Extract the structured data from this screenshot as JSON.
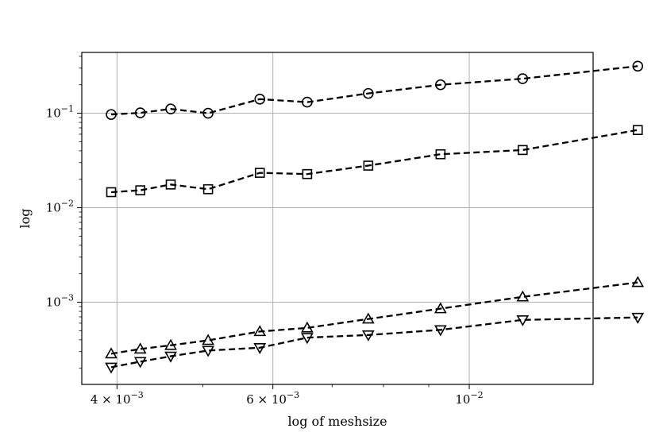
{
  "chart_data": {
    "type": "line",
    "title": "",
    "xlabel": "log of meshsize",
    "ylabel": "log",
    "xscale": "log",
    "yscale": "log",
    "xlim": [
      0.00365,
      0.0138
    ],
    "ylim": [
      0.000135,
      0.44
    ],
    "grid": "major",
    "x_ticks": [
      {
        "value": 0.004,
        "base": "4 × 10",
        "exp": "−3"
      },
      {
        "value": 0.006,
        "base": "6 × 10",
        "exp": "−3"
      },
      {
        "value": 0.01,
        "base": "10",
        "exp": "−2"
      }
    ],
    "y_ticks": [
      {
        "value": 0.1,
        "base": "10",
        "exp": "−1"
      },
      {
        "value": 0.01,
        "base": "10",
        "exp": "−2"
      },
      {
        "value": 0.001,
        "base": "10",
        "exp": "−3"
      }
    ],
    "x": [
      0.00394,
      0.00425,
      0.0046,
      0.00507,
      0.0058,
      0.00656,
      0.00769,
      0.00928,
      0.01149,
      0.0155
    ],
    "series": [
      {
        "marker": "circle",
        "values": [
          0.097,
          0.101,
          0.111,
          0.1,
          0.141,
          0.131,
          0.162,
          0.2,
          0.232,
          0.315
        ]
      },
      {
        "marker": "square",
        "values": [
          0.0146,
          0.0153,
          0.0176,
          0.0157,
          0.0234,
          0.0227,
          0.0279,
          0.0368,
          0.0408,
          0.0664
        ]
      },
      {
        "marker": "triangle-up",
        "values": [
          0.000285,
          0.00032,
          0.00035,
          0.000395,
          0.00049,
          0.000535,
          0.000665,
          0.000855,
          0.00114,
          0.00162
        ]
      },
      {
        "marker": "triangle-down",
        "values": [
          0.000205,
          0.000235,
          0.000268,
          0.000308,
          0.00033,
          0.000422,
          0.00045,
          0.00051,
          0.00065,
          0.00069
        ]
      }
    ]
  }
}
